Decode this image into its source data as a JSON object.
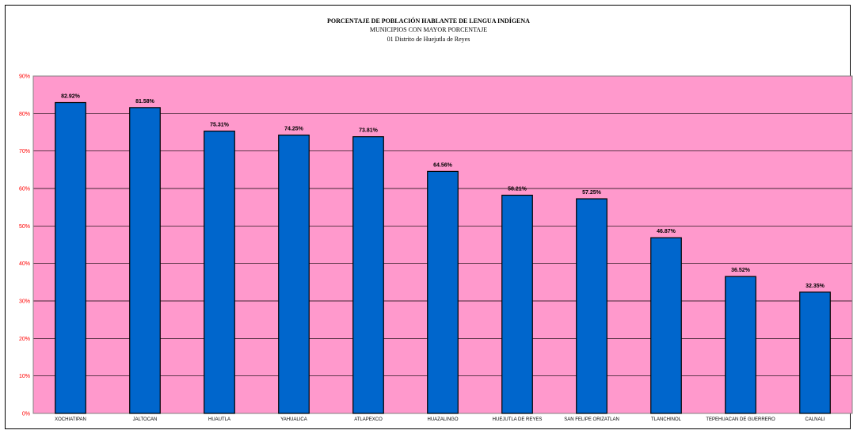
{
  "chart_data": {
    "type": "bar",
    "title": "PORCENTAJE DE POBLACIÓN HABLANTE DE LENGUA INDÍGENA",
    "subtitle": "MUNICIPIOS CON MAYOR PORCENTAJE",
    "subtitle2": "01 Distrito de Huejutla de Reyes",
    "xlabel": "",
    "ylabel": "",
    "ylim": [
      0,
      90
    ],
    "yticks": [
      "0%",
      "10%",
      "20%",
      "30%",
      "40%",
      "50%",
      "60%",
      "70%",
      "80%",
      "90%"
    ],
    "categories": [
      "XOCHIATIPAN",
      "JALTOCAN",
      "HUAUTLA",
      "YAHUALICA",
      "ATLAPEXCO",
      "HUAZALINGO",
      "HUEJUTLA DE REYES",
      "SAN FELIPE ORIZATLAN",
      "TLANCHINOL",
      "TEPEHUACAN DE GUERRERO",
      "CALNALI"
    ],
    "values": [
      82.92,
      81.58,
      75.31,
      74.25,
      73.81,
      64.56,
      58.21,
      57.25,
      46.87,
      36.52,
      32.35
    ],
    "data_labels": [
      "82.92%",
      "81.58%",
      "75.31%",
      "74.25%",
      "73.81%",
      "64.56%",
      "58.21%",
      "57.25%",
      "46.87%",
      "36.52%",
      "32.35%"
    ],
    "grid": true,
    "colors": {
      "plot_bg": "#ff99cc",
      "bar": "#0066cc",
      "tick_text": "#ff0000",
      "grid": "#000000"
    }
  }
}
